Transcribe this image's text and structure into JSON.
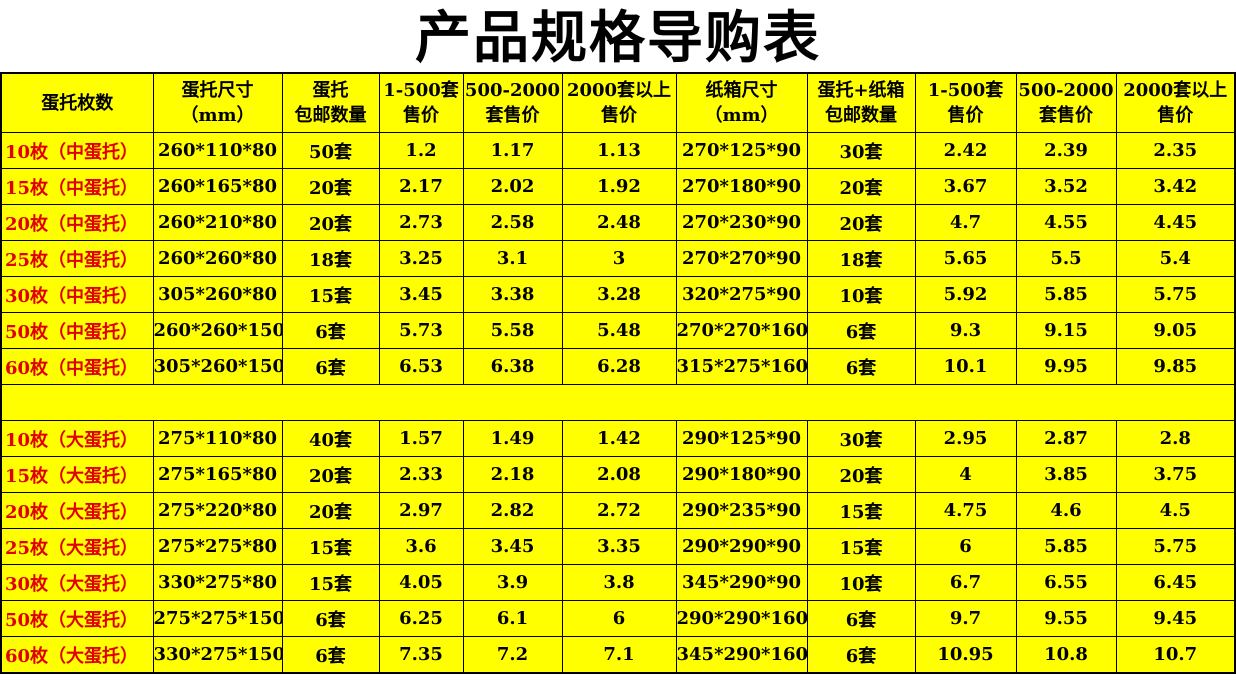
{
  "title": "产品规格导购表",
  "table": {
    "header": [
      [
        "蛋托枚数"
      ],
      [
        "蛋托尺寸",
        "（mm）"
      ],
      [
        "蛋托",
        "包邮数量"
      ],
      [
        "1-500套",
        "售价"
      ],
      [
        "500-2000",
        "套售价"
      ],
      [
        "2000套以上",
        "售价"
      ],
      [
        "纸箱尺寸",
        "（mm）"
      ],
      [
        "蛋托+纸箱",
        "包邮数量"
      ],
      [
        "1-500套",
        "售价"
      ],
      [
        "500-2000",
        "套售价"
      ],
      [
        "2000套以上",
        "售价"
      ]
    ],
    "groups": [
      {
        "rows": [
          [
            "10枚（中蛋托）",
            "260*110*80",
            "50套",
            "1.2",
            "1.17",
            "1.13",
            "270*125*90",
            "30套",
            "2.42",
            "2.39",
            "2.35"
          ],
          [
            "15枚（中蛋托）",
            "260*165*80",
            "20套",
            "2.17",
            "2.02",
            "1.92",
            "270*180*90",
            "20套",
            "3.67",
            "3.52",
            "3.42"
          ],
          [
            "20枚（中蛋托）",
            "260*210*80",
            "20套",
            "2.73",
            "2.58",
            "2.48",
            "270*230*90",
            "20套",
            "4.7",
            "4.55",
            "4.45"
          ],
          [
            "25枚（中蛋托）",
            "260*260*80",
            "18套",
            "3.25",
            "3.1",
            "3",
            "270*270*90",
            "18套",
            "5.65",
            "5.5",
            "5.4"
          ],
          [
            "30枚（中蛋托）",
            "305*260*80",
            "15套",
            "3.45",
            "3.38",
            "3.28",
            "320*275*90",
            "10套",
            "5.92",
            "5.85",
            "5.75"
          ],
          [
            "50枚（中蛋托）",
            "260*260*150",
            "6套",
            "5.73",
            "5.58",
            "5.48",
            "270*270*160",
            "6套",
            "9.3",
            "9.15",
            "9.05"
          ],
          [
            "60枚（中蛋托）",
            "305*260*150",
            "6套",
            "6.53",
            "6.38",
            "6.28",
            "315*275*160",
            "6套",
            "10.1",
            "9.95",
            "9.85"
          ]
        ]
      },
      {
        "rows": [
          [
            "10枚（大蛋托）",
            "275*110*80",
            "40套",
            "1.57",
            "1.49",
            "1.42",
            "290*125*90",
            "30套",
            "2.95",
            "2.87",
            "2.8"
          ],
          [
            "15枚（大蛋托）",
            "275*165*80",
            "20套",
            "2.33",
            "2.18",
            "2.08",
            "290*180*90",
            "20套",
            "4",
            "3.85",
            "3.75"
          ],
          [
            "20枚（大蛋托）",
            "275*220*80",
            "20套",
            "2.97",
            "2.82",
            "2.72",
            "290*235*90",
            "15套",
            "4.75",
            "4.6",
            "4.5"
          ],
          [
            "25枚（大蛋托）",
            "275*275*80",
            "15套",
            "3.6",
            "3.45",
            "3.35",
            "290*290*90",
            "15套",
            "6",
            "5.85",
            "5.75"
          ],
          [
            "30枚（大蛋托）",
            "330*275*80",
            "15套",
            "4.05",
            "3.9",
            "3.8",
            "345*290*90",
            "10套",
            "6.7",
            "6.55",
            "6.45"
          ],
          [
            "50枚（大蛋托）",
            "275*275*150",
            "6套",
            "6.25",
            "6.1",
            "6",
            "290*290*160",
            "6套",
            "9.7",
            "9.55",
            "9.45"
          ],
          [
            "60枚（大蛋托）",
            "330*275*150",
            "6套",
            "7.35",
            "7.2",
            "7.1",
            "345*290*160",
            "6套",
            "10.95",
            "10.8",
            "10.7"
          ]
        ]
      }
    ]
  }
}
